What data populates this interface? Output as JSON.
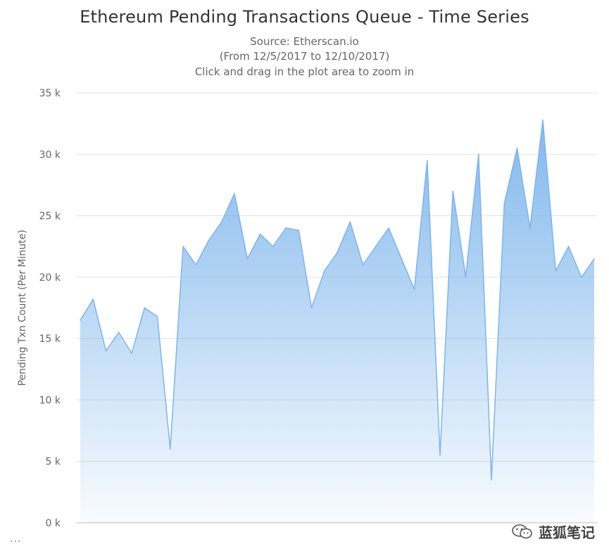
{
  "chart_data": {
    "type": "area",
    "title": "Ethereum Pending Transactions Queue - Time Series",
    "subtitles": [
      "Source: Etherscan.io",
      "(From 12/5/2017 to 12/10/2017)",
      "Click and drag in the plot area to zoom in"
    ],
    "xlabel": "",
    "ylabel": "Pending Txn Count (Per Minute)",
    "ylim": [
      0,
      35000
    ],
    "yticks": [
      0,
      5000,
      10000,
      15000,
      20000,
      25000,
      30000,
      35000
    ],
    "ytick_labels": [
      "0 k",
      "5 k",
      "10 k",
      "15 k",
      "20 k",
      "25 k",
      "30 k",
      "35 k"
    ],
    "x_range": [
      "12/5/2017",
      "12/10/2017"
    ],
    "grid": true,
    "legend": "none",
    "series": [
      {
        "color": "#7cb5ec",
        "x": [
          "12/5/2017 00:00",
          "12/5/2017 03:00",
          "12/5/2017 06:00",
          "12/5/2017 09:00",
          "12/5/2017 12:00",
          "12/5/2017 15:00",
          "12/5/2017 18:00",
          "12/5/2017 21:00",
          "12/6/2017 00:00",
          "12/6/2017 03:00",
          "12/6/2017 06:00",
          "12/6/2017 09:00",
          "12/6/2017 12:00",
          "12/6/2017 15:00",
          "12/6/2017 18:00",
          "12/6/2017 21:00",
          "12/7/2017 00:00",
          "12/7/2017 03:00",
          "12/7/2017 06:00",
          "12/7/2017 09:00",
          "12/7/2017 12:00",
          "12/7/2017 15:00",
          "12/7/2017 18:00",
          "12/7/2017 21:00",
          "12/8/2017 00:00",
          "12/8/2017 03:00",
          "12/8/2017 06:00",
          "12/8/2017 09:00",
          "12/8/2017 12:00",
          "12/8/2017 15:00",
          "12/8/2017 18:00",
          "12/8/2017 21:00",
          "12/9/2017 00:00",
          "12/9/2017 03:00",
          "12/9/2017 06:00",
          "12/9/2017 09:00",
          "12/9/2017 12:00",
          "12/9/2017 15:00",
          "12/9/2017 18:00",
          "12/9/2017 21:00",
          "12/10/2017 00:00"
        ],
        "values": [
          16500,
          18200,
          14000,
          15500,
          13800,
          17500,
          16800,
          6000,
          22500,
          21000,
          23000,
          24500,
          26800,
          21500,
          23500,
          22500,
          24000,
          23800,
          17500,
          20500,
          22000,
          24500,
          21000,
          22500,
          24000,
          21500,
          19000,
          29500,
          5500,
          27000,
          20000,
          30000,
          3500,
          26000,
          30500,
          24000,
          32800,
          20500,
          22500,
          20000,
          21500
        ]
      }
    ]
  },
  "watermark": {
    "text": "蓝狐笔记",
    "icon": "wechat-icon"
  },
  "footer": {
    "ellipsis": "..."
  }
}
